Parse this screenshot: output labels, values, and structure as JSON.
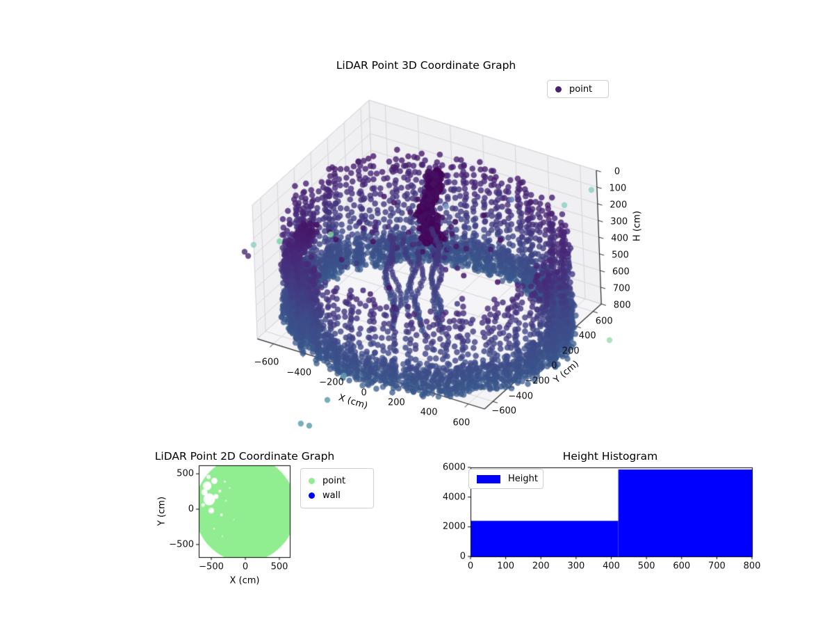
{
  "figure": {
    "background": "#ffffff"
  },
  "chart_data": [
    {
      "type": "scatter3d",
      "title": "LiDAR Point 3D Coordinate Graph",
      "xlabel": "X (cm)",
      "ylabel": "Y (cm)",
      "zlabel": "H (cm)",
      "legend": [
        {
          "label": "point",
          "marker_color": "#482070"
        }
      ],
      "xlim": [
        -700,
        700
      ],
      "ylim": [
        -700,
        700
      ],
      "zlim": [
        0,
        800
      ],
      "z_axis_inverted": true,
      "xticks": [
        -600,
        -400,
        -200,
        0,
        200,
        400,
        600
      ],
      "yticks": [
        -600,
        -400,
        -200,
        0,
        200,
        400,
        600
      ],
      "zticks": [
        0,
        100,
        200,
        300,
        400,
        500,
        600,
        700,
        800
      ],
      "grid": true,
      "colors": {
        "pane_wall": "#f0f0f3",
        "pane_floor": "#f5f5f8",
        "pane_edge": "#d0d0d6",
        "grid": "#d6d6db",
        "axis": "#2b2b2b",
        "tick_text": "#111111"
      },
      "colormap_viridis_stops": [
        [
          0,
          "#440154"
        ],
        [
          0.125,
          "#482878"
        ],
        [
          0.25,
          "#3e4a89"
        ],
        [
          0.375,
          "#31688e"
        ],
        [
          0.5,
          "#26828e"
        ],
        [
          0.625,
          "#1f9e89"
        ],
        [
          0.75,
          "#35b779"
        ]
      ],
      "projection": {
        "origin": [
          610.5,
          270
        ],
        "ex": [
          0.2336,
          0.0721
        ],
        "ey": [
          0.12,
          -0.1079
        ],
        "ez": [
          0.009,
          0.24
        ]
      },
      "cloud": {
        "seed": 42,
        "wall": {
          "radius_min": 665,
          "radius_max": 790,
          "stripe_step_deg": 2.1,
          "gap_prob": 0.055,
          "rim_base": 290,
          "rim_amp1": 140,
          "rim_ph1": 0.7,
          "rim_amp2": 70,
          "rim_ph2": 0.6,
          "rim_noise": 110,
          "rim_min": 115,
          "rim_max": 470,
          "z_bottom": 818,
          "z_step": 40,
          "dot_radius": 4.3,
          "alpha": 0.8
        },
        "bottom_band": {
          "step_deg": 1.05,
          "z_from": 690,
          "z_to": 820,
          "z_step": 26,
          "alpha": 0.75
        },
        "dark_blob": {
          "cx": -120,
          "cy": 290,
          "count": 420,
          "z_min": 60,
          "z_max": 490,
          "dot_radius": 4.4,
          "alpha": 0.9
        },
        "inner_columns": {
          "bases": [
            [
              -150,
              60
            ],
            [
              -60,
              -40
            ],
            [
              10,
              -130
            ],
            [
              -200,
              -60
            ],
            [
              30,
              40
            ],
            [
              -110,
              -160
            ],
            [
              90,
              -60
            ],
            [
              -30,
              150
            ],
            [
              -260,
              40
            ]
          ],
          "z_from": 320,
          "z_to": 812,
          "z_step": 15,
          "dot_radius": 3.9,
          "alpha": 0.7
        },
        "left_arm": {
          "cx": -545,
          "cy": -455,
          "count": 360,
          "z_min": 170,
          "z_max": 820,
          "dot_radius": 4.3,
          "alpha": 0.85
        },
        "floating_noise": {
          "count": 60,
          "x_range": [
            -520,
            280
          ],
          "y_range": [
            -260,
            540
          ],
          "z_range": [
            130,
            670
          ],
          "dot_radius": 4.0,
          "alpha": 0.85
        },
        "t_scale": {
          "offset": 0.02,
          "z_div": 850,
          "span": 0.3
        },
        "outliers": [
          {
            "x": 689,
            "y": 655,
            "z": 100,
            "color": "#8fd0c3"
          },
          {
            "x": 599,
            "y": 502,
            "z": 150,
            "color": "#8fd0c3"
          },
          {
            "x": -756,
            "y": -598,
            "z": 300,
            "color": "#8fd0c3"
          },
          {
            "x": -699,
            "y": -402,
            "z": 350,
            "color": "#7ed3a0"
          },
          {
            "x": -455,
            "y": -258,
            "z": 300,
            "color": "#7ed3a0"
          },
          {
            "x": 1010,
            "y": 202,
            "z": 700,
            "color": "#9fdcae"
          },
          {
            "x": -112,
            "y": -1326,
            "z": 850,
            "color": "#5fa0ae"
          },
          {
            "x": -63,
            "y": -1321,
            "z": 850,
            "color": "#5fa0ae"
          },
          {
            "x": -67,
            "y": -1092,
            "z": 800,
            "color": "#5fa0ae"
          },
          {
            "x": -159,
            "y": -718,
            "z": 850,
            "color": "#5fa0ae"
          },
          {
            "x": -806,
            "y": -612,
            "z": 350,
            "color": "#55367a"
          },
          {
            "x": -768,
            "y": -643,
            "z": 350,
            "color": "#55367a"
          },
          {
            "x": -24,
            "y": 290,
            "z": 250,
            "color": "#7d9cc9"
          },
          {
            "x": 241,
            "y": 559,
            "z": 250,
            "color": "#6a7fb5"
          }
        ],
        "outlier_dot_radius": 4.2,
        "outlier_alpha": 0.85
      }
    },
    {
      "type": "scatter",
      "title": "LiDAR Point 2D Coordinate Graph",
      "xlabel": "X (cm)",
      "ylabel": "Y (cm)",
      "legend": [
        {
          "label": "point",
          "marker_color": "#90ee90"
        },
        {
          "label": "wall",
          "marker_color": "#0000ff"
        }
      ],
      "xlim": [
        -684,
        653
      ],
      "ylim": [
        -678,
        620
      ],
      "xticks": [
        -500,
        0,
        500
      ],
      "yticks": [
        -500,
        0,
        500
      ],
      "point_color": "#90ee90",
      "disc": {
        "cx": 0,
        "cy": 0,
        "r": 745
      },
      "holes": [
        [
          -530,
          140,
          85
        ],
        [
          -560,
          330,
          62
        ],
        [
          -455,
          400,
          45
        ],
        [
          -600,
          240,
          45
        ],
        [
          -500,
          -20,
          40
        ],
        [
          -430,
          180,
          35
        ],
        [
          -375,
          255,
          22
        ],
        [
          -350,
          -80,
          18
        ],
        [
          -300,
          390,
          16
        ],
        [
          -285,
          120,
          12
        ],
        [
          -540,
          455,
          30
        ],
        [
          -620,
          60,
          25
        ],
        [
          -459,
          -275,
          12
        ],
        [
          -337,
          -383,
          10
        ],
        [
          -170,
          -150,
          8
        ],
        [
          -230,
          300,
          10
        ]
      ]
    },
    {
      "type": "histogram",
      "title": "Height Histogram",
      "legend": [
        {
          "label": "Height",
          "swatch_color": "#0000ff"
        }
      ],
      "bar_color": "#0000ff",
      "xlim": [
        0,
        800
      ],
      "ylim": [
        0,
        6000
      ],
      "xticks": [
        0,
        100,
        200,
        300,
        400,
        500,
        600,
        700,
        800
      ],
      "yticks": [
        0,
        2000,
        4000,
        6000
      ],
      "bins": [
        {
          "from": 0,
          "to": 420,
          "count": 2400
        },
        {
          "from": 420,
          "to": 840,
          "count": 5860
        }
      ]
    }
  ]
}
